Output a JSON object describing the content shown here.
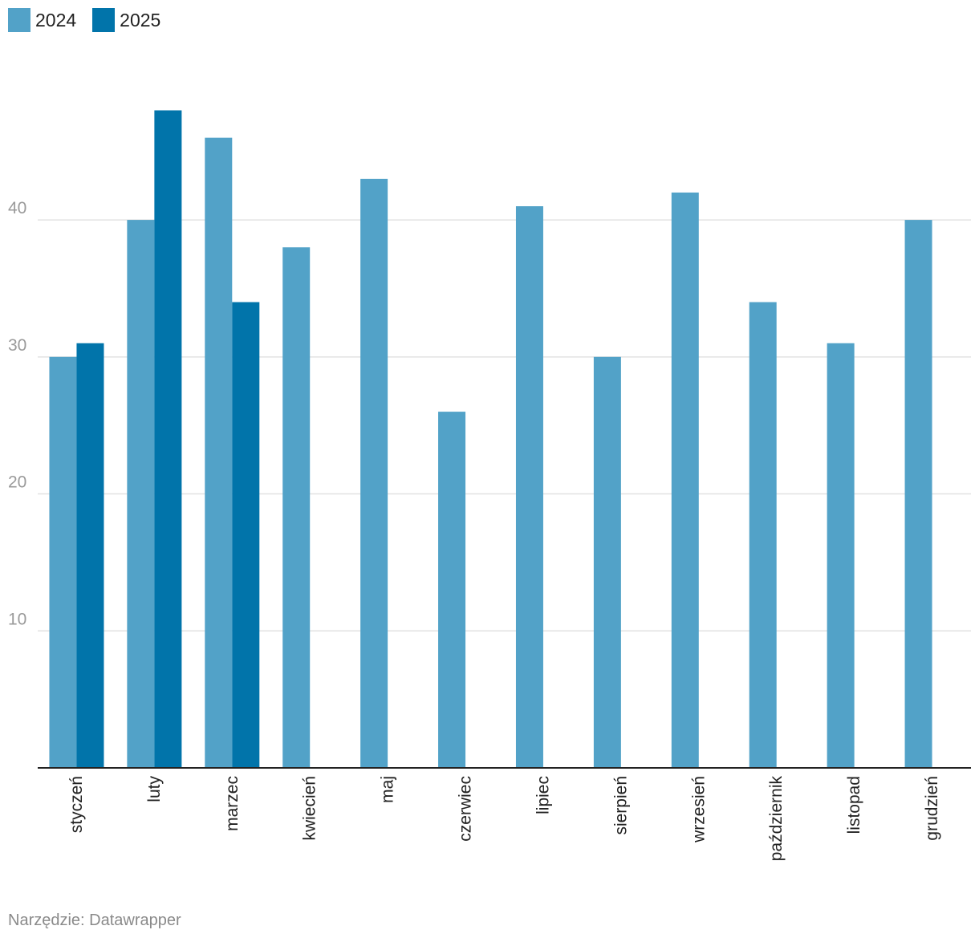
{
  "chart_data": {
    "type": "bar",
    "categories": [
      "styczeń",
      "luty",
      "marzec",
      "kwiecień",
      "maj",
      "czerwiec",
      "lipiec",
      "sierpień",
      "wrzesień",
      "październik",
      "listopad",
      "grudzień"
    ],
    "series": [
      {
        "name": "2024",
        "color": "#52a2c8",
        "values": [
          30,
          40,
          46,
          38,
          43,
          26,
          41,
          30,
          42,
          34,
          31,
          40
        ]
      },
      {
        "name": "2025",
        "color": "#0174aa",
        "values": [
          31,
          48,
          34,
          null,
          null,
          null,
          null,
          null,
          null,
          null,
          null,
          null
        ]
      }
    ],
    "yticks": [
      10,
      20,
      30,
      40
    ],
    "ylim": [
      0,
      50.9
    ],
    "grid": true,
    "legend": "top-left",
    "title": "",
    "xlabel": "",
    "ylabel": ""
  },
  "legend": {
    "items": [
      {
        "label": "2024",
        "color": "#52a2c8"
      },
      {
        "label": "2025",
        "color": "#0174aa"
      }
    ]
  },
  "footer": {
    "source": "Narzędzie: Datawrapper"
  }
}
